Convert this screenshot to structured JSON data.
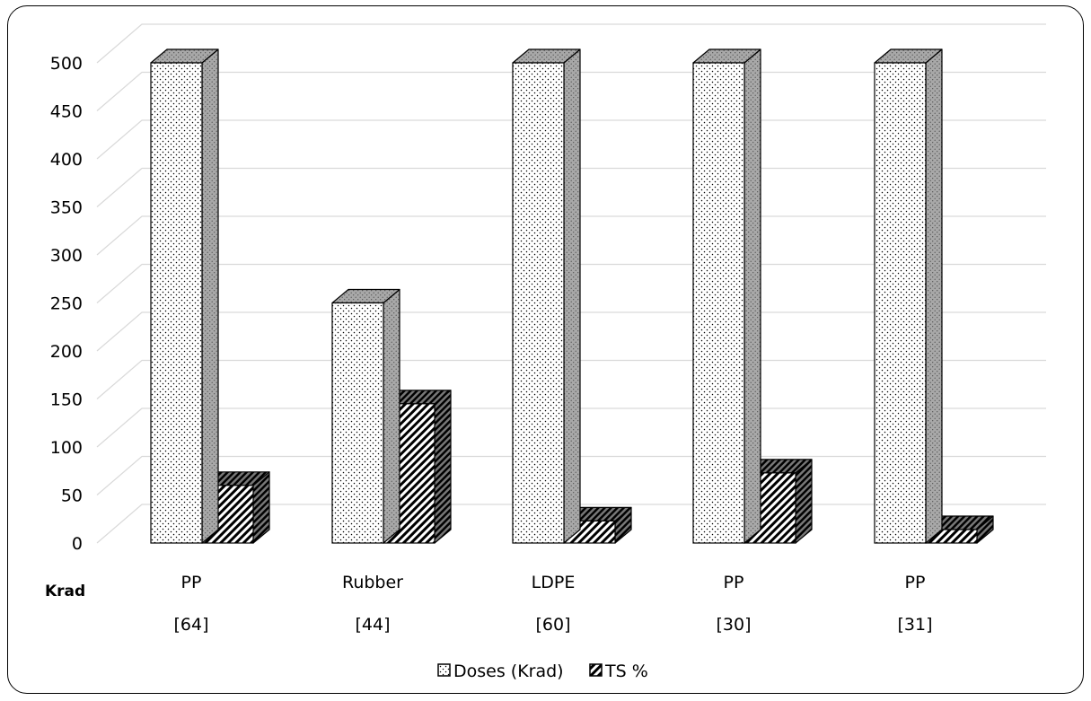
{
  "chart_data": {
    "type": "bar",
    "title": "",
    "xlabel": "",
    "ylabel": "",
    "y_unit_label": "Krad",
    "ylim": [
      0,
      500
    ],
    "yticks": [
      "0",
      "50",
      "100",
      "150",
      "200",
      "250",
      "300",
      "350",
      "400",
      "450",
      "500"
    ],
    "categories": [
      "PP",
      "Rubber",
      "LDPE",
      "PP",
      "PP"
    ],
    "category_refs": [
      "[64]",
      "[44]",
      "[60]",
      "[30]",
      "[31]"
    ],
    "series": [
      {
        "name": "Doses (Krad)",
        "values": [
          500,
          250,
          500,
          500,
          500
        ],
        "pattern": "dots"
      },
      {
        "name": "TS %",
        "values": [
          60,
          145,
          23,
          73,
          14
        ],
        "pattern": "diagonal-hatch"
      }
    ],
    "grid": true,
    "style": "3d-columns",
    "legend_position": "bottom-center"
  }
}
